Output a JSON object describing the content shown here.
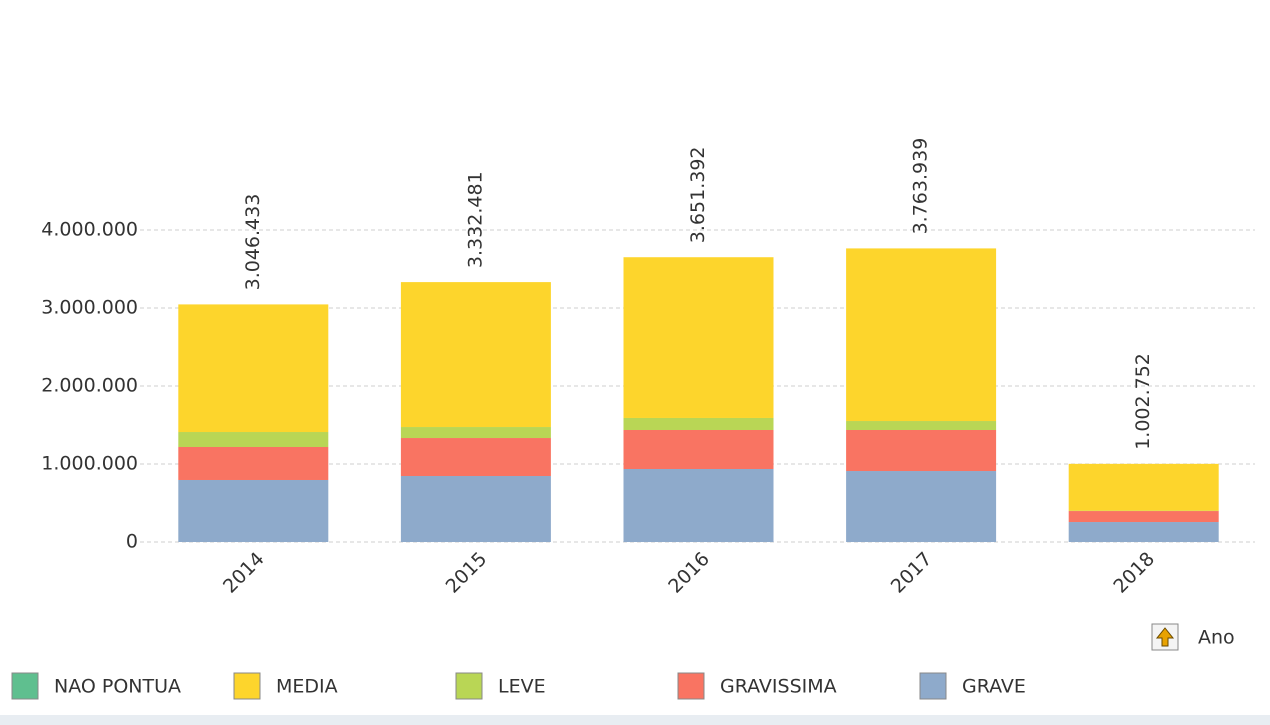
{
  "chart_data": {
    "type": "stacked_bar",
    "categories": [
      "2014",
      "2015",
      "2016",
      "2017",
      "2018"
    ],
    "series": [
      {
        "name": "GRAVE",
        "color": "#8eaacb",
        "values": [
          795000,
          846000,
          936000,
          910000,
          256000
        ]
      },
      {
        "name": "GRAVISSIMA",
        "color": "#f97462",
        "values": [
          423000,
          487000,
          500000,
          526000,
          141000
        ]
      },
      {
        "name": "LEVE",
        "color": "#b9d655",
        "values": [
          192000,
          141000,
          154000,
          115000,
          5000
        ]
      },
      {
        "name": "MEDIA",
        "color": "#fdd52c",
        "values": [
          1636000,
          1858000,
          2061000,
          2213000,
          600000
        ]
      },
      {
        "name": "NAO PONTUA",
        "color": "#5fbf8f",
        "values": [
          0,
          0,
          0,
          0,
          0
        ]
      }
    ],
    "legend_order": [
      4,
      3,
      2,
      1,
      0
    ],
    "totals": [
      3046433,
      3332481,
      3651392,
      3763939,
      1002752
    ],
    "total_labels": [
      "3.046.433",
      "3.332.481",
      "3.651.392",
      "3.763.939",
      "1.002.752"
    ],
    "ylim": [
      0,
      4000000
    ],
    "yticks": [
      0,
      {
        "value": 1000000,
        "label": "1.000.000"
      },
      {
        "value": 2000000,
        "label": "2.000.000"
      },
      {
        "value": 3000000,
        "label": "3.000.000"
      },
      {
        "value": 4000000,
        "label": "4.000.000"
      }
    ],
    "grid": true,
    "legend": "bottom",
    "x_label": "Ano"
  }
}
